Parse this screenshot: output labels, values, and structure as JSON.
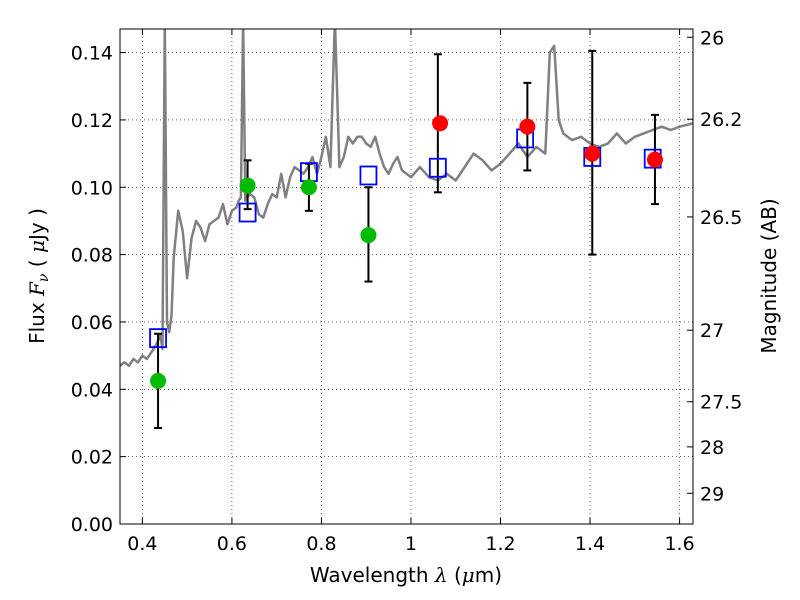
{
  "chart_data": {
    "type": "scatter",
    "xlabel": {
      "prefix": "Wavelength",
      "symbol": "λ",
      "unit_open": "(",
      "unit_mu": "μ",
      "unit_rest": "m)"
    },
    "ylabel": {
      "prefix": "Flux",
      "symbol": "F",
      "subscript": "ν",
      "unit_open": "(",
      "unit_mu": "μ",
      "unit_rest": "Jy",
      "unit_close": ")"
    },
    "y2label": "Magnitude (AB)",
    "xlim": [
      0.35,
      1.63
    ],
    "ylim": [
      0.0,
      0.147
    ],
    "grid": true,
    "x_ticks": [
      0.4,
      0.6,
      0.8,
      1.0,
      1.2,
      1.4,
      1.6
    ],
    "x_tick_labels": [
      "0.4",
      "0.6",
      "0.8",
      "1",
      "1.2",
      "1.4",
      "1.6"
    ],
    "y_ticks": [
      0.0,
      0.02,
      0.04,
      0.06,
      0.08,
      0.1,
      0.12,
      0.14
    ],
    "y_tick_labels": [
      "0.00",
      "0.02",
      "0.04",
      "0.06",
      "0.08",
      "0.10",
      "0.12",
      "0.14"
    ],
    "mag_ticks": [
      26,
      26.2,
      26.5,
      27,
      27.5,
      28,
      29
    ],
    "mag_tick_labels": [
      "26",
      "26.2",
      "26.5",
      "27",
      "27.5",
      "28",
      "29"
    ],
    "colors": {
      "model": "#808080",
      "synthetic": "#0000ff",
      "green_points": "#00bb00",
      "red_points": "#ff0000",
      "errorbar": "#000000",
      "grid": "#000000"
    },
    "model_spectrum": {
      "name": "",
      "x": [
        0.35,
        0.36,
        0.37,
        0.38,
        0.39,
        0.4,
        0.41,
        0.42,
        0.43,
        0.44,
        0.445,
        0.45,
        0.455,
        0.46,
        0.465,
        0.47,
        0.48,
        0.49,
        0.5,
        0.51,
        0.52,
        0.53,
        0.54,
        0.55,
        0.56,
        0.57,
        0.58,
        0.59,
        0.6,
        0.61,
        0.615,
        0.62,
        0.625,
        0.63,
        0.64,
        0.65,
        0.66,
        0.67,
        0.68,
        0.69,
        0.7,
        0.71,
        0.72,
        0.73,
        0.74,
        0.75,
        0.76,
        0.77,
        0.78,
        0.79,
        0.8,
        0.81,
        0.82,
        0.83,
        0.84,
        0.85,
        0.86,
        0.87,
        0.88,
        0.89,
        0.9,
        0.91,
        0.92,
        0.93,
        0.94,
        0.95,
        0.96,
        0.97,
        0.98,
        0.99,
        1.0,
        1.02,
        1.04,
        1.06,
        1.08,
        1.1,
        1.12,
        1.14,
        1.16,
        1.18,
        1.2,
        1.22,
        1.24,
        1.26,
        1.28,
        1.3,
        1.31,
        1.32,
        1.33,
        1.34,
        1.36,
        1.38,
        1.4,
        1.42,
        1.44,
        1.46,
        1.48,
        1.5,
        1.52,
        1.54,
        1.56,
        1.58,
        1.6,
        1.63
      ],
      "y": [
        0.047,
        0.048,
        0.047,
        0.049,
        0.048,
        0.05,
        0.049,
        0.051,
        0.053,
        0.056,
        0.052,
        0.15,
        0.06,
        0.057,
        0.062,
        0.079,
        0.093,
        0.087,
        0.073,
        0.085,
        0.09,
        0.088,
        0.084,
        0.089,
        0.09,
        0.091,
        0.095,
        0.089,
        0.093,
        0.094,
        0.096,
        0.097,
        0.15,
        0.096,
        0.098,
        0.097,
        0.092,
        0.091,
        0.095,
        0.098,
        0.097,
        0.104,
        0.097,
        0.103,
        0.106,
        0.105,
        0.104,
        0.106,
        0.109,
        0.104,
        0.109,
        0.115,
        0.106,
        0.15,
        0.106,
        0.109,
        0.115,
        0.113,
        0.115,
        0.115,
        0.113,
        0.112,
        0.115,
        0.11,
        0.106,
        0.104,
        0.107,
        0.109,
        0.105,
        0.104,
        0.103,
        0.106,
        0.103,
        0.102,
        0.104,
        0.102,
        0.106,
        0.11,
        0.108,
        0.105,
        0.107,
        0.11,
        0.113,
        0.109,
        0.112,
        0.11,
        0.14,
        0.142,
        0.12,
        0.116,
        0.114,
        0.115,
        0.113,
        0.112,
        0.113,
        0.116,
        0.113,
        0.115,
        0.116,
        0.117,
        0.118,
        0.117,
        0.118,
        0.119
      ]
    },
    "synthetic_photometry": {
      "name": "",
      "x": [
        0.435,
        0.635,
        0.772,
        0.905,
        1.06,
        1.255,
        1.405,
        1.54
      ],
      "y": [
        0.0552,
        0.0925,
        0.1045,
        0.1035,
        0.1058,
        0.1145,
        0.109,
        0.1085
      ]
    },
    "observed_green": {
      "name": "",
      "x": [
        0.435,
        0.635,
        0.772,
        0.905
      ],
      "y": [
        0.0425,
        0.1005,
        0.1,
        0.0858
      ],
      "yerr_low": [
        0.0285,
        0.0935,
        0.093,
        0.072
      ],
      "yerr_high": [
        0.0565,
        0.108,
        0.107,
        0.1
      ],
      "errbar_offset": [
        0.0,
        0.0,
        0.0,
        0.0
      ]
    },
    "observed_red": {
      "name": "",
      "x": [
        1.065,
        1.26,
        1.405,
        1.545
      ],
      "y": [
        0.119,
        0.118,
        0.11,
        0.1082
      ],
      "yerr_low": [
        0.0985,
        0.105,
        0.08,
        0.095
      ],
      "yerr_high": [
        0.1395,
        0.131,
        0.1405,
        0.1215
      ],
      "errbar_offset": [
        -0.005,
        0.0,
        0.0,
        0.0
      ]
    }
  }
}
